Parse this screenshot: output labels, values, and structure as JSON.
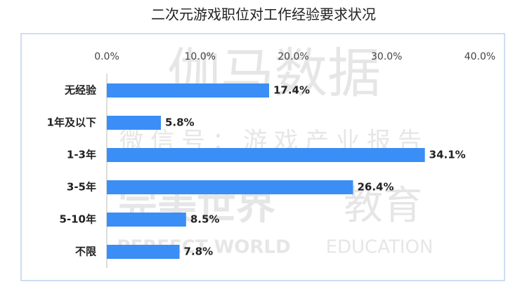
{
  "chart_data": {
    "type": "hbar",
    "title": "二次元游戏职位对工作经验要求状况",
    "categories": [
      "无经验",
      "1年及以下",
      "1-3年",
      "3-5年",
      "5-10年",
      "不限"
    ],
    "values": [
      17.4,
      5.8,
      34.1,
      26.4,
      8.5,
      7.8
    ],
    "value_labels": [
      "17.4%",
      "5.8%",
      "34.1%",
      "26.4%",
      "8.5%",
      "7.8%"
    ],
    "color": "#3a8ef6",
    "xlim": [
      0,
      40
    ],
    "xticks": [
      {
        "value": 0,
        "label": "0.0%"
      },
      {
        "value": 10,
        "label": "10.0%"
      },
      {
        "value": 20,
        "label": "20.0%"
      },
      {
        "value": 30,
        "label": "30.0%"
      },
      {
        "value": 40,
        "label": "40.0%"
      }
    ],
    "grid": false,
    "watermarks": [
      "伽马数据",
      "微信号：游戏产业报告",
      "完美世界",
      "教育",
      "PERFECT WORLD",
      "EDUCATION"
    ]
  }
}
